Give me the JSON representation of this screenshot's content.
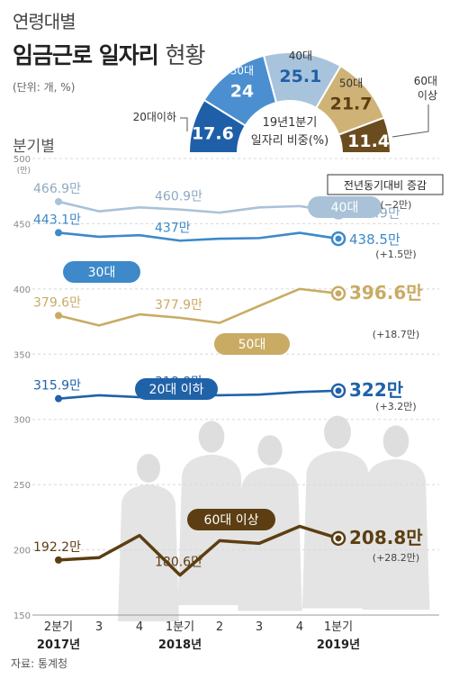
{
  "title_line1": "연령대별",
  "title_main": "임금근로 일자리",
  "title_suffix": "현황",
  "unit": "(단위: 개, %)",
  "section_label": "분기별",
  "source": "자료: 통계청",
  "yoy_label": "전년동기대비 증감",
  "chart_data": [
    {
      "type": "pie",
      "style": "semi-donut",
      "center_label": [
        "19년1분기",
        "일자리 비중(%)"
      ],
      "slices": [
        {
          "label": "20대이하",
          "value": 17.6,
          "color": "#1f5fa8"
        },
        {
          "label": "30대",
          "value": 24,
          "color": "#4c8fd0"
        },
        {
          "label": "40대",
          "value": 25.1,
          "color": "#a8c4dc"
        },
        {
          "label": "50대",
          "value": 21.7,
          "color": "#cfb376"
        },
        {
          "label": "60대 이상",
          "value": 11.4,
          "color": "#6b4c1e"
        }
      ]
    },
    {
      "type": "line",
      "y_axis": {
        "min": 150,
        "max": 500,
        "ticks": [
          150,
          200,
          250,
          300,
          350,
          400,
          450,
          500
        ],
        "top_tick": "500",
        "top_tick_unit": "(만)"
      },
      "x_axis": {
        "ticks": [
          "2분기",
          "3",
          "4",
          "1분기",
          "2",
          "3",
          "4",
          "1분기"
        ],
        "years": [
          {
            "label": "2017년",
            "index": 0
          },
          {
            "label": "2018년",
            "index": 3
          },
          {
            "label": "2019년",
            "index": 7
          }
        ]
      },
      "series": [
        {
          "name": "40대",
          "color": "#a9c2d8",
          "values": [
            466.9,
            459.5,
            462.5,
            460.9,
            458.5,
            462.5,
            463.5,
            458.9
          ],
          "labels": [
            {
              "i": 0,
              "text": "466.9만"
            },
            {
              "i": 3,
              "text": "460.9만"
            },
            {
              "i": 7,
              "text": "458.9만"
            }
          ],
          "change": "(−2만)"
        },
        {
          "name": "30대",
          "color": "#3d89c9",
          "values": [
            443.1,
            440.0,
            441.2,
            437.0,
            438.5,
            439.0,
            443.0,
            438.5
          ],
          "labels": [
            {
              "i": 0,
              "text": "443.1만"
            },
            {
              "i": 3,
              "text": "437만"
            },
            {
              "i": 7,
              "text": "438.5만"
            }
          ],
          "change": "(+1.5만)"
        },
        {
          "name": "50대",
          "color": "#c9ab63",
          "values": [
            379.6,
            372.0,
            380.5,
            377.9,
            374.0,
            387.0,
            400.0,
            396.6
          ],
          "labels": [
            {
              "i": 0,
              "text": "379.6만"
            },
            {
              "i": 3,
              "text": "377.9만"
            },
            {
              "i": 7,
              "text": "396.6만"
            }
          ],
          "change": "(+18.7만)"
        },
        {
          "name": "20대 이하",
          "color": "#1f62a8",
          "values": [
            315.9,
            318.5,
            317.0,
            318.8,
            318.5,
            319.0,
            321.0,
            322.0
          ],
          "labels": [
            {
              "i": 0,
              "text": "315.9만"
            },
            {
              "i": 3,
              "text": "318.8만"
            },
            {
              "i": 7,
              "text": "322만"
            }
          ],
          "change": "(+3.2만)"
        },
        {
          "name": "60대 이상",
          "color": "#5c3e12",
          "values": [
            192.2,
            194.0,
            211.0,
            180.6,
            207.0,
            205.0,
            218.0,
            208.8
          ],
          "labels": [
            {
              "i": 0,
              "text": "192.2만"
            },
            {
              "i": 3,
              "text": "180.6만"
            },
            {
              "i": 7,
              "text": "208.8만"
            }
          ],
          "change": "(+28.2만)"
        }
      ]
    }
  ]
}
